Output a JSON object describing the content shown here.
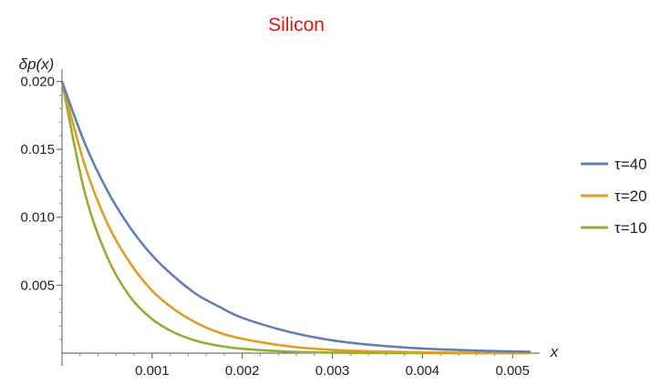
{
  "chart_data": {
    "type": "line",
    "title": "Silicon",
    "title_color": "#e8130f",
    "xlabel": "x",
    "ylabel": "δp(x)",
    "xlim": [
      0,
      0.0052
    ],
    "ylim": [
      0,
      0.0205
    ],
    "x_ticks": [
      {
        "value": 0.001,
        "label": "0.001"
      },
      {
        "value": 0.002,
        "label": "0.002"
      },
      {
        "value": 0.003,
        "label": "0.003"
      },
      {
        "value": 0.004,
        "label": "0.004"
      },
      {
        "value": 0.005,
        "label": "0.005"
      }
    ],
    "y_ticks": [
      {
        "value": 0.005,
        "label": "0.005"
      },
      {
        "value": 0.01,
        "label": "0.010"
      },
      {
        "value": 0.015,
        "label": "0.015"
      },
      {
        "value": 0.02,
        "label": "0.020"
      }
    ],
    "grid": false,
    "legend_position": "right",
    "series": [
      {
        "name": "τ=40",
        "color": "#5e81b5",
        "x": [
          0,
          0.00025,
          0.0005,
          0.00075,
          0.001,
          0.00125,
          0.0015,
          0.00175,
          0.002,
          0.0025,
          0.003,
          0.0035,
          0.004,
          0.0045,
          0.005,
          0.0052
        ],
        "y": [
          0.02,
          0.0155,
          0.012,
          0.0093,
          0.0072,
          0.0056,
          0.0043,
          0.0034,
          0.0026,
          0.0016,
          0.00094,
          0.00057,
          0.00034,
          0.00021,
          0.00012,
          0.0001
        ]
      },
      {
        "name": "τ=20",
        "color": "#e19c24",
        "x": [
          0,
          0.00025,
          0.0005,
          0.00075,
          0.001,
          0.00125,
          0.0015,
          0.00175,
          0.002,
          0.0025,
          0.003,
          0.0035,
          0.004,
          0.0045,
          0.005,
          0.0052
        ],
        "y": [
          0.02,
          0.0139,
          0.0096,
          0.0067,
          0.0046,
          0.0032,
          0.0022,
          0.0015,
          0.00106,
          0.00051,
          0.00024,
          0.00012,
          5.6e-05,
          2.7e-05,
          1.3e-05,
          1e-05
        ]
      },
      {
        "name": "τ=10",
        "color": "#8fb032",
        "x": [
          0,
          0.00025,
          0.0005,
          0.00075,
          0.001,
          0.00125,
          0.0015,
          0.00175,
          0.002,
          0.0025,
          0.003,
          0.0035,
          0.004,
          0.0045,
          0.005,
          0.0052
        ],
        "y": [
          0.02,
          0.0119,
          0.0071,
          0.0042,
          0.0025,
          0.0015,
          0.00089,
          0.00053,
          0.00032,
          0.00011,
          4e-05,
          1.4e-05,
          5e-06,
          2e-06,
          1e-06,
          5e-07
        ]
      }
    ]
  }
}
